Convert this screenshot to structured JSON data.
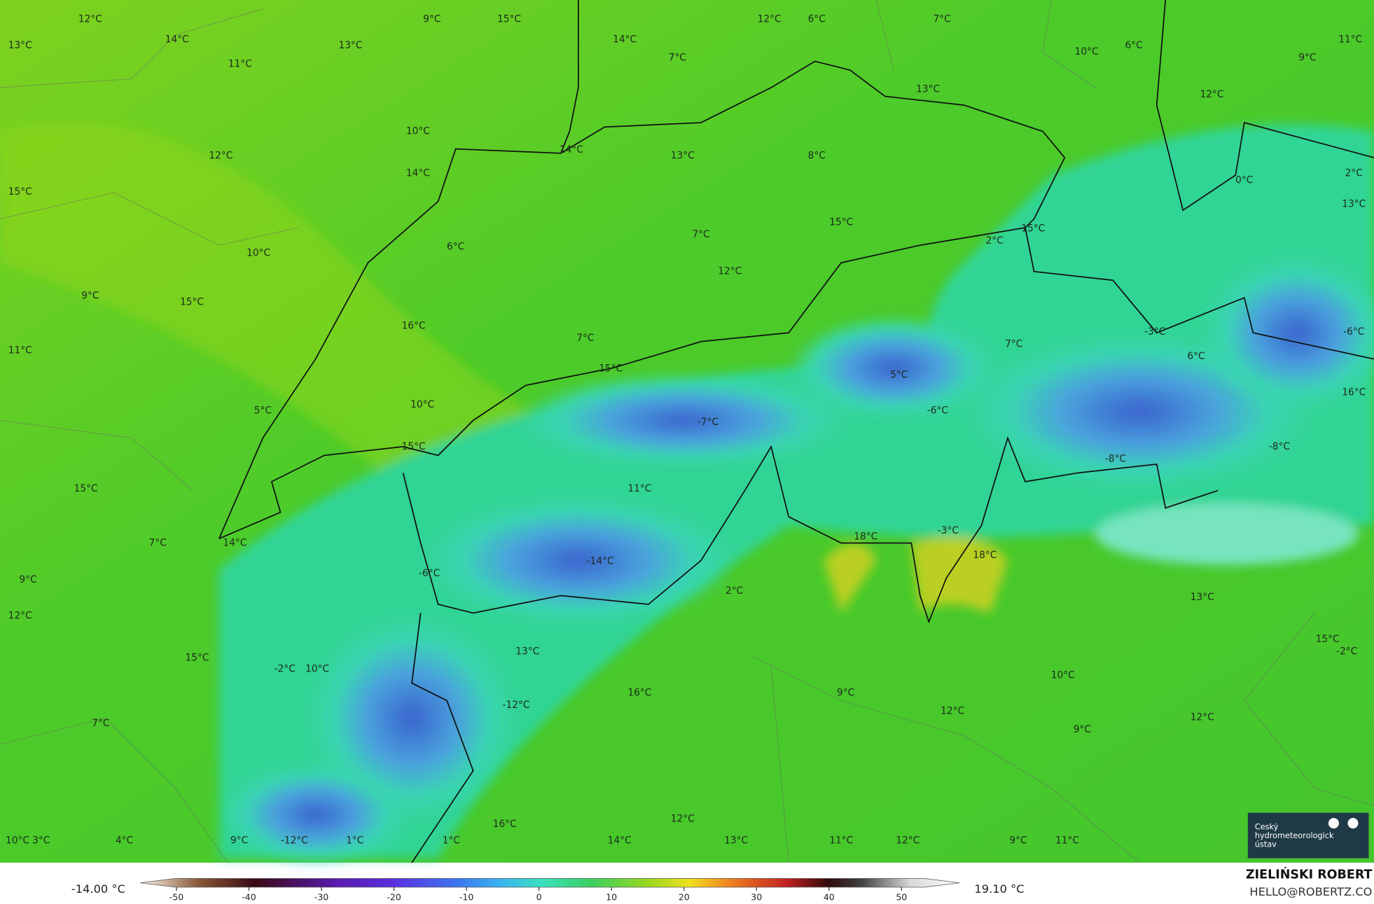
{
  "map": {
    "labels": [
      "12°C",
      "9°C",
      "15°C",
      "12°C",
      "6°C",
      "7°C",
      "13°C",
      "14°C",
      "13°C",
      "14°C",
      "7°C",
      "10°C",
      "6°C",
      "9°C",
      "11°C",
      "11°C",
      "13°C",
      "12°C",
      "10°C",
      "12°C",
      "14°C",
      "13°C",
      "8°C",
      "14°C",
      "0°C",
      "2°C",
      "15°C",
      "13°C",
      "15°C",
      "2°C",
      "15°C",
      "7°C",
      "6°C",
      "10°C",
      "12°C",
      "9°C",
      "15°C",
      "16°C",
      "7°C",
      "-3°C",
      "-6°C",
      "7°C",
      "11°C",
      "6°C",
      "15°C",
      "5°C",
      "16°C",
      "10°C",
      "-6°C",
      "5°C",
      "-7°C",
      "15°C",
      "-8°C",
      "-8°C",
      "15°C",
      "11°C",
      "7°C",
      "14°C",
      "18°C",
      "-3°C",
      "18°C",
      "-14°C",
      "-6°C",
      "9°C",
      "2°C",
      "13°C",
      "12°C",
      "15°C",
      "-2°C",
      "15°C",
      "13°C",
      "-2°C",
      "10°C",
      "10°C",
      "9°C",
      "16°C",
      "7°C",
      "-12°C",
      "12°C",
      "12°C",
      "9°C",
      "16°C",
      "12°C",
      "10°C",
      "10°C",
      "3°C",
      "4°C",
      "9°C",
      "-12°C",
      "1°C",
      "1°C",
      "14°C",
      "13°C",
      "11°C",
      "12°C",
      "9°C",
      "11°C"
    ]
  },
  "colorbar": {
    "min_label": "-14.00 °C",
    "max_label": "19.10 °C",
    "lim": [
      -55,
      58
    ],
    "ticks": [
      -50,
      -40,
      -30,
      -20,
      -10,
      0,
      10,
      20,
      30,
      40,
      50
    ]
  },
  "credit": {
    "name": "ZIELIŃSKI ROBERT",
    "email": "HELLO@ROBERTZ.CO"
  },
  "logo": {
    "text": "Český hydrometeorologický ústav"
  }
}
